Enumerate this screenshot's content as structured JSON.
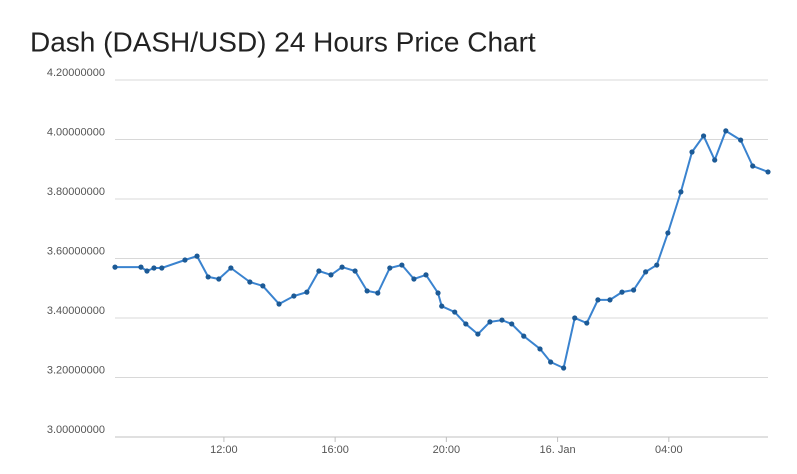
{
  "chart_data": {
    "type": "line",
    "title": "Dash (DASH/USD) 24 Hours Price Chart",
    "x": [
      "08:05",
      "09:01",
      "09:14",
      "09:29",
      "09:46",
      "10:36",
      "11:02",
      "11:26",
      "11:49",
      "12:15",
      "12:56",
      "13:24",
      "13:59",
      "14:31",
      "14:59",
      "15:25",
      "15:51",
      "16:15",
      "16:43",
      "17:09",
      "17:32",
      "17:58",
      "18:24",
      "18:50",
      "19:16",
      "19:42",
      "19:50",
      "20:18",
      "20:42",
      "21:08",
      "21:34",
      "22:00",
      "22:21",
      "22:47",
      "23:22",
      "23:45",
      "00:13",
      "00:37",
      "01:03",
      "01:27",
      "01:53",
      "02:19",
      "02:44",
      "03:10",
      "03:34",
      "03:58",
      "04:26",
      "04:50",
      "05:15",
      "05:39",
      "06:03",
      "06:35",
      "07:01",
      "07:34"
    ],
    "values": [
      3.571,
      3.571,
      3.558,
      3.568,
      3.568,
      3.595,
      3.608,
      3.538,
      3.531,
      3.568,
      3.521,
      3.508,
      3.447,
      3.474,
      3.487,
      3.558,
      3.545,
      3.571,
      3.558,
      3.491,
      3.484,
      3.568,
      3.578,
      3.531,
      3.545,
      3.484,
      3.44,
      3.42,
      3.38,
      3.346,
      3.387,
      3.393,
      3.38,
      3.339,
      3.296,
      3.252,
      3.232,
      3.4,
      3.383,
      3.461,
      3.461,
      3.487,
      3.494,
      3.555,
      3.578,
      3.686,
      3.824,
      3.958,
      4.012,
      3.931,
      4.029,
      3.998,
      3.911,
      3.891
    ],
    "color": "#3a83cf",
    "marker_color": "#1c5a96",
    "xlim": [
      "08:05",
      "07:34"
    ],
    "xticks": [
      "12:00",
      "16:00",
      "20:00",
      {
        "value": "00:00",
        "label": "16. Jan"
      },
      "04:00"
    ],
    "ylim": [
      3.0,
      4.2
    ],
    "yticks": [
      {
        "value": 3.0,
        "label": "3.00000000"
      },
      {
        "value": 3.2,
        "label": "3.20000000"
      },
      {
        "value": 3.4,
        "label": "3.40000000"
      },
      {
        "value": 3.6,
        "label": "3.60000000"
      },
      {
        "value": 3.8,
        "label": "3.80000000"
      },
      {
        "value": 4.0,
        "label": "4.00000000"
      },
      {
        "value": 4.2,
        "label": "4.20000000"
      }
    ],
    "grid": true
  }
}
